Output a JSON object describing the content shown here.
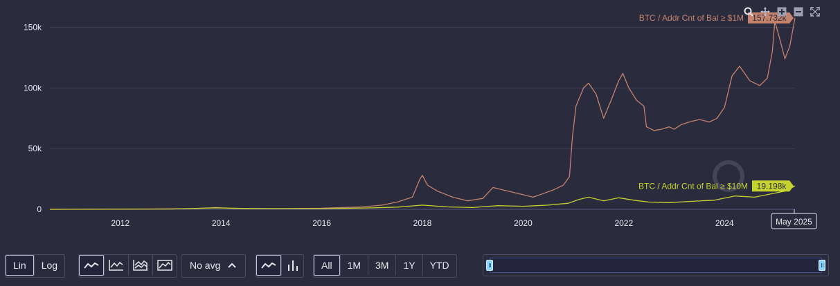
{
  "chart_data": {
    "type": "line",
    "x_ticks": [
      "2012",
      "2014",
      "2016",
      "2018",
      "2020",
      "2022",
      "2024"
    ],
    "y_ticks": [
      "0",
      "50k",
      "100k",
      "150k"
    ],
    "ylim": [
      0,
      160000
    ],
    "xlim": [
      2010.6,
      2025.4
    ],
    "grid": true,
    "crosshair_label": "May 2025",
    "series": [
      {
        "name": "BTC / Addr Cnt of Bal ≥ $1M",
        "last_value_label": "157.732k",
        "color": "#c4836c",
        "points": [
          [
            2010.6,
            0
          ],
          [
            2011.5,
            200
          ],
          [
            2012.5,
            300
          ],
          [
            2013.5,
            600
          ],
          [
            2013.9,
            1500
          ],
          [
            2014.2,
            800
          ],
          [
            2015.0,
            500
          ],
          [
            2016.0,
            900
          ],
          [
            2016.8,
            2000
          ],
          [
            2017.2,
            3500
          ],
          [
            2017.5,
            6000
          ],
          [
            2017.8,
            10000
          ],
          [
            2017.95,
            25000
          ],
          [
            2018.0,
            28000
          ],
          [
            2018.1,
            20000
          ],
          [
            2018.3,
            15000
          ],
          [
            2018.6,
            10000
          ],
          [
            2018.9,
            7000
          ],
          [
            2019.2,
            9000
          ],
          [
            2019.4,
            18000
          ],
          [
            2019.6,
            16000
          ],
          [
            2019.8,
            14000
          ],
          [
            2020.0,
            12000
          ],
          [
            2020.2,
            10000
          ],
          [
            2020.4,
            13000
          ],
          [
            2020.6,
            16000
          ],
          [
            2020.8,
            20000
          ],
          [
            2020.92,
            27000
          ],
          [
            2020.98,
            60000
          ],
          [
            2021.05,
            85000
          ],
          [
            2021.2,
            100000
          ],
          [
            2021.3,
            104000
          ],
          [
            2021.45,
            95000
          ],
          [
            2021.6,
            75000
          ],
          [
            2021.75,
            90000
          ],
          [
            2021.9,
            106000
          ],
          [
            2021.98,
            112000
          ],
          [
            2022.1,
            100000
          ],
          [
            2022.25,
            90000
          ],
          [
            2022.4,
            85000
          ],
          [
            2022.45,
            68000
          ],
          [
            2022.6,
            65000
          ],
          [
            2022.75,
            66000
          ],
          [
            2022.9,
            68000
          ],
          [
            2023.0,
            66000
          ],
          [
            2023.15,
            70000
          ],
          [
            2023.3,
            72000
          ],
          [
            2023.5,
            74000
          ],
          [
            2023.7,
            72000
          ],
          [
            2023.85,
            75000
          ],
          [
            2024.0,
            84000
          ],
          [
            2024.15,
            110000
          ],
          [
            2024.3,
            118000
          ],
          [
            2024.5,
            106000
          ],
          [
            2024.7,
            102000
          ],
          [
            2024.85,
            108000
          ],
          [
            2024.95,
            130000
          ],
          [
            2025.0,
            155000
          ],
          [
            2025.1,
            140000
          ],
          [
            2025.2,
            124000
          ],
          [
            2025.3,
            135000
          ],
          [
            2025.4,
            157732
          ]
        ]
      },
      {
        "name": "BTC / Addr Cnt of Bal ≥ $10M",
        "last_value_label": "19.198k",
        "color": "#c6d22e",
        "points": [
          [
            2010.6,
            0
          ],
          [
            2013.0,
            200
          ],
          [
            2013.9,
            1200
          ],
          [
            2014.5,
            700
          ],
          [
            2016.0,
            500
          ],
          [
            2017.0,
            1200
          ],
          [
            2017.5,
            1800
          ],
          [
            2018.0,
            3500
          ],
          [
            2018.5,
            2000
          ],
          [
            2019.0,
            1500
          ],
          [
            2019.5,
            3000
          ],
          [
            2020.0,
            2500
          ],
          [
            2020.5,
            3500
          ],
          [
            2020.9,
            5000
          ],
          [
            2021.1,
            8000
          ],
          [
            2021.3,
            10000
          ],
          [
            2021.6,
            7000
          ],
          [
            2021.9,
            9500
          ],
          [
            2022.2,
            7500
          ],
          [
            2022.5,
            6000
          ],
          [
            2022.9,
            5500
          ],
          [
            2023.3,
            6500
          ],
          [
            2023.8,
            7500
          ],
          [
            2024.2,
            11000
          ],
          [
            2024.6,
            10000
          ],
          [
            2024.95,
            13000
          ],
          [
            2025.2,
            15000
          ],
          [
            2025.4,
            19198
          ]
        ]
      }
    ]
  },
  "toolbar": {
    "scale_lin": "Lin",
    "scale_log": "Log",
    "avg_label": "No avg",
    "range_all": "All",
    "range_1m": "1M",
    "range_3m": "3M",
    "range_1y": "1Y",
    "range_ytd": "YTD"
  },
  "icons": {
    "top": [
      "zoom-icon",
      "pan-icon",
      "zoom-in-icon",
      "zoom-out-icon",
      "fullscreen-icon"
    ],
    "chart_types": [
      "line-icon",
      "line-axis-icon",
      "area-stack-icon",
      "area-icon"
    ],
    "series_types": [
      "line-icon",
      "bar-icon"
    ]
  },
  "colors": {
    "background": "#2a2b3d",
    "grid": "#3e4058",
    "series_1m": "#c4836c",
    "series_10m": "#c6d22e"
  }
}
